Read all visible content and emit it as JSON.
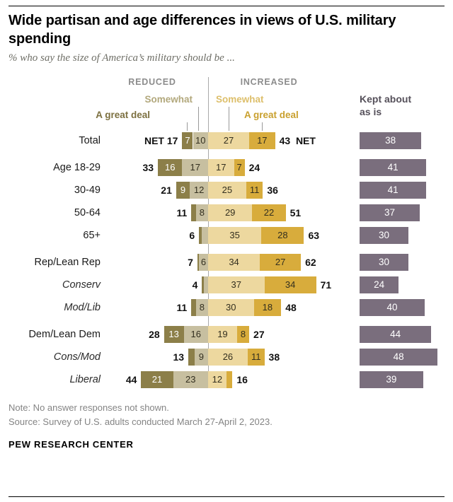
{
  "header": {
    "title": "Wide partisan and age differences in views of U.S. military spending",
    "subtitle": "% who say the size of America’s military should be ..."
  },
  "chart_data": {
    "type": "bar",
    "variant": "diverging_stacked_bar_with_side_column",
    "title": "Wide partisan and age differences in views of U.S. military spending",
    "subtitle": "% who say the size of America’s military should be ...",
    "axis_headers": {
      "left": "REDUCED",
      "right": "INCREASED"
    },
    "legend": {
      "reduced_great_deal": "A great deal",
      "reduced_somewhat": "Somewhat",
      "increased_somewhat": "Somewhat",
      "increased_great_deal": "A great deal",
      "kept_line1": "Kept about",
      "kept_line2": "as is"
    },
    "colors": {
      "reduced_great_deal": "#8C7F49",
      "reduced_somewhat": "#C7BFA0",
      "increased_somewhat": "#EDD89F",
      "increased_great_deal": "#D8AC3C",
      "kept": "#7A6E7D",
      "axis_line": "#A9A9A9"
    },
    "categories": [
      "Total",
      "Age 18-29",
      "30-49",
      "50-64",
      "65+",
      "Rep/Lean Rep",
      "Conserv",
      "Mod/Lib",
      "Dem/Lean Dem",
      "Cons/Mod",
      "Liberal"
    ],
    "rows": [
      {
        "label": "Total",
        "italic": false,
        "group_start": false,
        "net_left": "NET 17",
        "net_right": "43  NET",
        "segments": [
          {
            "key": "reduced_great_deal",
            "value": 7,
            "text": "7"
          },
          {
            "key": "reduced_somewhat",
            "value": 10,
            "text": "10"
          },
          {
            "key": "increased_somewhat",
            "value": 27,
            "text": "27"
          },
          {
            "key": "increased_great_deal",
            "value": 17,
            "text": "17"
          }
        ],
        "kept": {
          "value": 38,
          "text": "38"
        }
      },
      {
        "label": "Age 18-29",
        "italic": false,
        "group_start": true,
        "net_left": "33",
        "net_right": "24",
        "segments": [
          {
            "key": "reduced_great_deal",
            "value": 16,
            "text": "16"
          },
          {
            "key": "reduced_somewhat",
            "value": 17,
            "text": "17"
          },
          {
            "key": "increased_somewhat",
            "value": 17,
            "text": "17"
          },
          {
            "key": "increased_great_deal",
            "value": 7,
            "text": "7"
          }
        ],
        "kept": {
          "value": 41,
          "text": "41"
        }
      },
      {
        "label": "30-49",
        "italic": false,
        "group_start": false,
        "net_left": "21",
        "net_right": "36",
        "segments": [
          {
            "key": "reduced_great_deal",
            "value": 9,
            "text": "9"
          },
          {
            "key": "reduced_somewhat",
            "value": 12,
            "text": "12"
          },
          {
            "key": "increased_somewhat",
            "value": 25,
            "text": "25"
          },
          {
            "key": "increased_great_deal",
            "value": 11,
            "text": "11"
          }
        ],
        "kept": {
          "value": 41,
          "text": "41"
        }
      },
      {
        "label": "50-64",
        "italic": false,
        "group_start": false,
        "net_left": "11",
        "net_right": "51",
        "segments": [
          {
            "key": "reduced_great_deal",
            "value": 3,
            "text": ""
          },
          {
            "key": "reduced_somewhat",
            "value": 8,
            "text": "8"
          },
          {
            "key": "increased_somewhat",
            "value": 29,
            "text": "29"
          },
          {
            "key": "increased_great_deal",
            "value": 22,
            "text": "22"
          }
        ],
        "kept": {
          "value": 37,
          "text": "37"
        }
      },
      {
        "label": "65+",
        "italic": false,
        "group_start": false,
        "net_left": "6",
        "net_right": "63",
        "segments": [
          {
            "key": "reduced_great_deal",
            "value": 2,
            "text": ""
          },
          {
            "key": "reduced_somewhat",
            "value": 4,
            "text": ""
          },
          {
            "key": "increased_somewhat",
            "value": 35,
            "text": "35"
          },
          {
            "key": "increased_great_deal",
            "value": 28,
            "text": "28"
          }
        ],
        "kept": {
          "value": 30,
          "text": "30"
        }
      },
      {
        "label": "Rep/Lean Rep",
        "italic": false,
        "group_start": true,
        "net_left": "7",
        "net_right": "62",
        "segments": [
          {
            "key": "reduced_great_deal",
            "value": 1,
            "text": ""
          },
          {
            "key": "reduced_somewhat",
            "value": 6,
            "text": "6"
          },
          {
            "key": "increased_somewhat",
            "value": 34,
            "text": "34"
          },
          {
            "key": "increased_great_deal",
            "value": 27,
            "text": "27"
          }
        ],
        "kept": {
          "value": 30,
          "text": "30"
        }
      },
      {
        "label": "Conserv",
        "italic": true,
        "group_start": false,
        "net_left": "4",
        "net_right": "71",
        "segments": [
          {
            "key": "reduced_great_deal",
            "value": 1,
            "text": ""
          },
          {
            "key": "reduced_somewhat",
            "value": 3,
            "text": ""
          },
          {
            "key": "increased_somewhat",
            "value": 37,
            "text": "37"
          },
          {
            "key": "increased_great_deal",
            "value": 34,
            "text": "34"
          }
        ],
        "kept": {
          "value": 24,
          "text": "24"
        }
      },
      {
        "label": "Mod/Lib",
        "italic": true,
        "group_start": false,
        "net_left": "11",
        "net_right": "48",
        "segments": [
          {
            "key": "reduced_great_deal",
            "value": 3,
            "text": ""
          },
          {
            "key": "reduced_somewhat",
            "value": 8,
            "text": "8"
          },
          {
            "key": "increased_somewhat",
            "value": 30,
            "text": "30"
          },
          {
            "key": "increased_great_deal",
            "value": 18,
            "text": "18"
          }
        ],
        "kept": {
          "value": 40,
          "text": "40"
        }
      },
      {
        "label": "Dem/Lean Dem",
        "italic": false,
        "group_start": true,
        "net_left": "28",
        "net_right": "27",
        "segments": [
          {
            "key": "reduced_great_deal",
            "value": 13,
            "text": "13"
          },
          {
            "key": "reduced_somewhat",
            "value": 16,
            "text": "16"
          },
          {
            "key": "increased_somewhat",
            "value": 19,
            "text": "19"
          },
          {
            "key": "increased_great_deal",
            "value": 8,
            "text": "8"
          }
        ],
        "kept": {
          "value": 44,
          "text": "44"
        }
      },
      {
        "label": "Cons/Mod",
        "italic": true,
        "group_start": false,
        "net_left": "13",
        "net_right": "38",
        "segments": [
          {
            "key": "reduced_great_deal",
            "value": 4,
            "text": ""
          },
          {
            "key": "reduced_somewhat",
            "value": 9,
            "text": "9"
          },
          {
            "key": "increased_somewhat",
            "value": 26,
            "text": "26"
          },
          {
            "key": "increased_great_deal",
            "value": 11,
            "text": "11"
          }
        ],
        "kept": {
          "value": 48,
          "text": "48"
        }
      },
      {
        "label": "Liberal",
        "italic": true,
        "group_start": false,
        "net_left": "44",
        "net_right": "16",
        "segments": [
          {
            "key": "reduced_great_deal",
            "value": 21,
            "text": "21"
          },
          {
            "key": "reduced_somewhat",
            "value": 23,
            "text": "23"
          },
          {
            "key": "increased_somewhat",
            "value": 12,
            "text": "12"
          },
          {
            "key": "increased_great_deal",
            "value": 4,
            "text": ""
          }
        ],
        "kept": {
          "value": 39,
          "text": "39"
        }
      }
    ]
  },
  "notes": {
    "note": "Note: No answer responses not shown.",
    "source": "Source: Survey of U.S. adults conducted March 27-April 2, 2023.",
    "footer": "PEW RESEARCH CENTER"
  }
}
